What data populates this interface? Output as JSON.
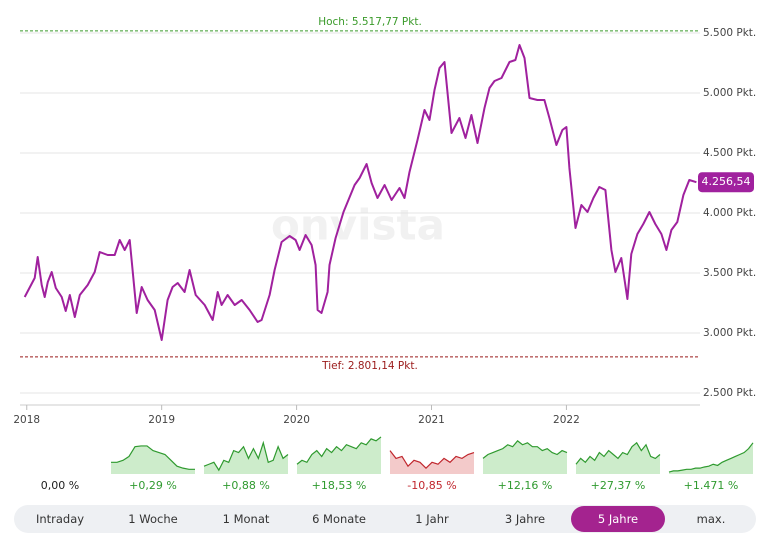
{
  "chart_data": {
    "type": "line",
    "color": "#a0219e",
    "watermark": "onvista",
    "x": [
      2017.985,
      2018.059,
      2018.081,
      2018.111,
      2018.133,
      2018.156,
      2018.185,
      2018.215,
      2018.259,
      2018.289,
      2018.319,
      2018.356,
      2018.393,
      2018.452,
      2018.504,
      2018.541,
      2018.6,
      2018.652,
      2018.689,
      2018.726,
      2018.763,
      2018.815,
      2018.852,
      2018.896,
      2018.948,
      2019.0,
      2019.044,
      2019.081,
      2019.119,
      2019.17,
      2019.207,
      2019.252,
      2019.319,
      2019.378,
      2019.415,
      2019.444,
      2019.489,
      2019.541,
      2019.593,
      2019.652,
      2019.711,
      2019.741,
      2019.8,
      2019.837,
      2019.889,
      2019.948,
      2019.993,
      2020.022,
      2020.067,
      2020.111,
      2020.141,
      2020.156,
      2020.185,
      2020.23,
      2020.244,
      2020.289,
      2020.348,
      2020.43,
      2020.467,
      2020.519,
      2020.556,
      2020.6,
      2020.652,
      2020.704,
      2020.763,
      2020.8,
      2020.837,
      2020.896,
      2020.948,
      2020.985,
      2021.022,
      2021.059,
      2021.096,
      2021.148,
      2021.207,
      2021.252,
      2021.296,
      2021.341,
      2021.393,
      2021.43,
      2021.467,
      2021.519,
      2021.578,
      2021.622,
      2021.652,
      2021.689,
      2021.726,
      2021.785,
      2021.837,
      2021.874,
      2021.926,
      2021.97,
      2022.0,
      2022.022,
      2022.067,
      2022.111,
      2022.156,
      2022.2,
      2022.244,
      2022.289,
      2022.333,
      2022.363,
      2022.407,
      2022.452,
      2022.481,
      2022.526,
      2022.57,
      2022.615,
      2022.659,
      2022.704,
      2022.741,
      2022.778,
      2022.822,
      2022.867,
      2022.911,
      2022.963
    ],
    "series": [
      {
        "color": "#a0219e",
        "values": [
          3300,
          3458,
          3633,
          3400,
          3300,
          3425,
          3508,
          3375,
          3300,
          3183,
          3317,
          3133,
          3317,
          3400,
          3508,
          3675,
          3650,
          3650,
          3775,
          3692,
          3775,
          3167,
          3383,
          3275,
          3192,
          2942,
          3275,
          3383,
          3417,
          3342,
          3525,
          3317,
          3233,
          3108,
          3342,
          3233,
          3317,
          3233,
          3275,
          3192,
          3092,
          3108,
          3317,
          3525,
          3758,
          3808,
          3775,
          3692,
          3817,
          3733,
          3567,
          3192,
          3167,
          3342,
          3567,
          3792,
          4008,
          4233,
          4292,
          4408,
          4250,
          4125,
          4233,
          4108,
          4208,
          4125,
          4342,
          4608,
          4858,
          4775,
          5025,
          5208,
          5258,
          4667,
          4792,
          4625,
          4817,
          4583,
          4875,
          5042,
          5100,
          5125,
          5258,
          5275,
          5400,
          5292,
          4958,
          4942,
          4942,
          4792,
          4567,
          4692,
          4717,
          4375,
          3875,
          4067,
          4008,
          4125,
          4217,
          4192,
          3692,
          3508,
          3625,
          3283,
          3658,
          3825,
          3908,
          4008,
          3908,
          3825,
          3692,
          3858,
          3925,
          4150,
          4275,
          4256.54
        ]
      }
    ],
    "xlim": [
      2017.95,
      2022.99
    ],
    "xticks": [
      2018,
      2019,
      2020,
      2021,
      2022
    ],
    "ylim": [
      2400,
      5600
    ],
    "yticks": [
      {
        "value": 2500,
        "label": "2.500 Pkt."
      },
      {
        "value": 3000,
        "label": "3.000 Pkt."
      },
      {
        "value": 3500,
        "label": "3.500 Pkt."
      },
      {
        "value": 4000,
        "label": "4.000 Pkt."
      },
      {
        "value": 4500,
        "label": "4.500 Pkt."
      },
      {
        "value": 5000,
        "label": "5.000 Pkt."
      },
      {
        "value": 5500,
        "label": "5.500 Pkt."
      }
    ],
    "grid": true,
    "high": {
      "value": 5517.77,
      "label": "Hoch: 5.517,77 Pkt.",
      "color": "#3a9a2a"
    },
    "low": {
      "value": 2801.14,
      "label": "Tief: 2.801,14 Pkt.",
      "color": "#9a1a1a"
    },
    "last": {
      "value": 4256.54,
      "label": "4.256,54"
    }
  },
  "periods": [
    {
      "label": "Intraday",
      "change": "0,00 %",
      "color": "#222222"
    },
    {
      "label": "1 Woche",
      "change": "+0,29 %",
      "color": "#2f9a2f",
      "values": [
        30,
        30,
        35,
        45,
        70,
        72,
        72,
        60,
        55,
        50,
        35,
        20,
        15,
        12,
        12
      ]
    },
    {
      "label": "1 Monat",
      "change": "+0,88 %",
      "color": "#2f9a2f",
      "values": [
        20,
        25,
        30,
        10,
        35,
        30,
        60,
        55,
        70,
        40,
        65,
        40,
        80,
        30,
        35,
        70,
        40,
        50
      ]
    },
    {
      "label": "6 Monate",
      "change": "+18,53 %",
      "color": "#2f9a2f",
      "values": [
        25,
        35,
        30,
        50,
        60,
        45,
        65,
        55,
        70,
        60,
        75,
        70,
        65,
        80,
        75,
        90,
        85,
        95
      ]
    },
    {
      "label": "1 Jahr",
      "change": "-10,85 %",
      "color": "#c0262d",
      "values": [
        60,
        40,
        45,
        20,
        35,
        30,
        15,
        30,
        25,
        40,
        30,
        45,
        40,
        50,
        55
      ]
    },
    {
      "label": "3 Jahre",
      "change": "+12,16 %",
      "color": "#2f9a2f",
      "values": [
        40,
        50,
        55,
        60,
        65,
        75,
        70,
        85,
        75,
        80,
        70,
        70,
        60,
        65,
        55,
        50,
        60,
        55
      ]
    },
    {
      "label": "5 Jahre",
      "change": "+27,37 %",
      "color": "#2f9a2f",
      "active": true,
      "values": [
        25,
        40,
        30,
        45,
        35,
        55,
        45,
        60,
        50,
        40,
        55,
        50,
        70,
        80,
        60,
        75,
        45,
        40,
        50
      ]
    },
    {
      "label": "max.",
      "change": "+1.471 %",
      "color": "#2f9a2f",
      "values": [
        5,
        8,
        8,
        10,
        12,
        12,
        15,
        15,
        18,
        20,
        25,
        22,
        30,
        35,
        40,
        45,
        50,
        55,
        65,
        80
      ]
    }
  ]
}
